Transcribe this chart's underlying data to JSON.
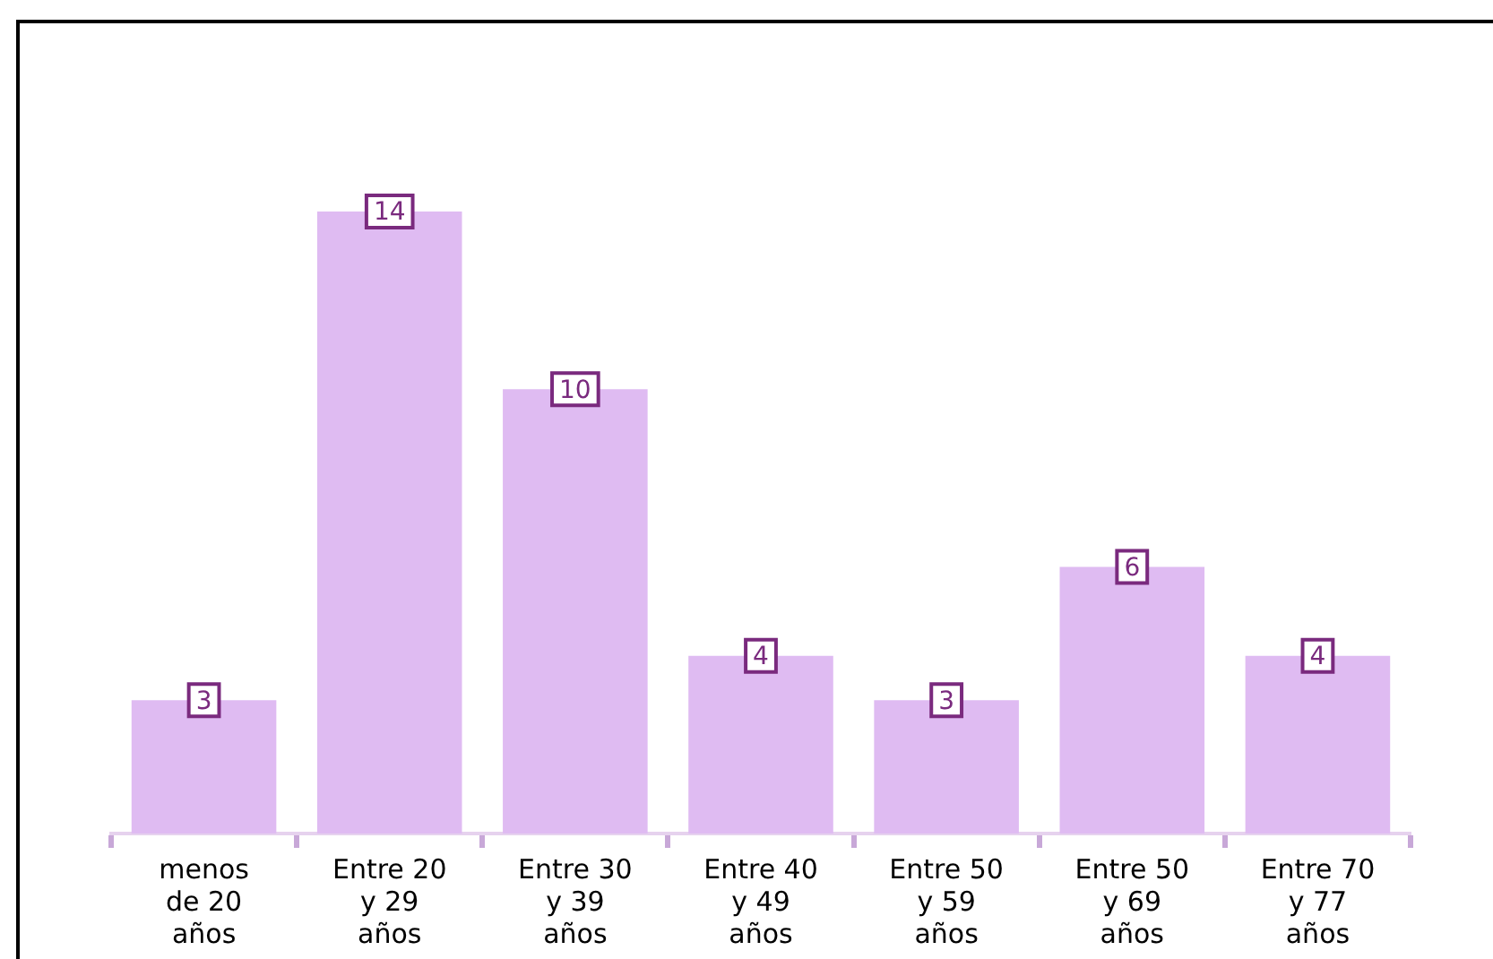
{
  "chart_data": {
    "type": "bar",
    "categories": [
      "menos de 20 años",
      "Entre 20 y 29 años",
      "Entre 30 y 39 años",
      "Entre 40 y 49 años",
      "Entre 50 y 59 años",
      "Entre 50 y 69 años",
      "Entre 70 y 77 años"
    ],
    "values": [
      3,
      14,
      10,
      4,
      3,
      6,
      4
    ],
    "color": "#dfbbf2",
    "data_labels": true,
    "grid": false,
    "legend": false
  }
}
